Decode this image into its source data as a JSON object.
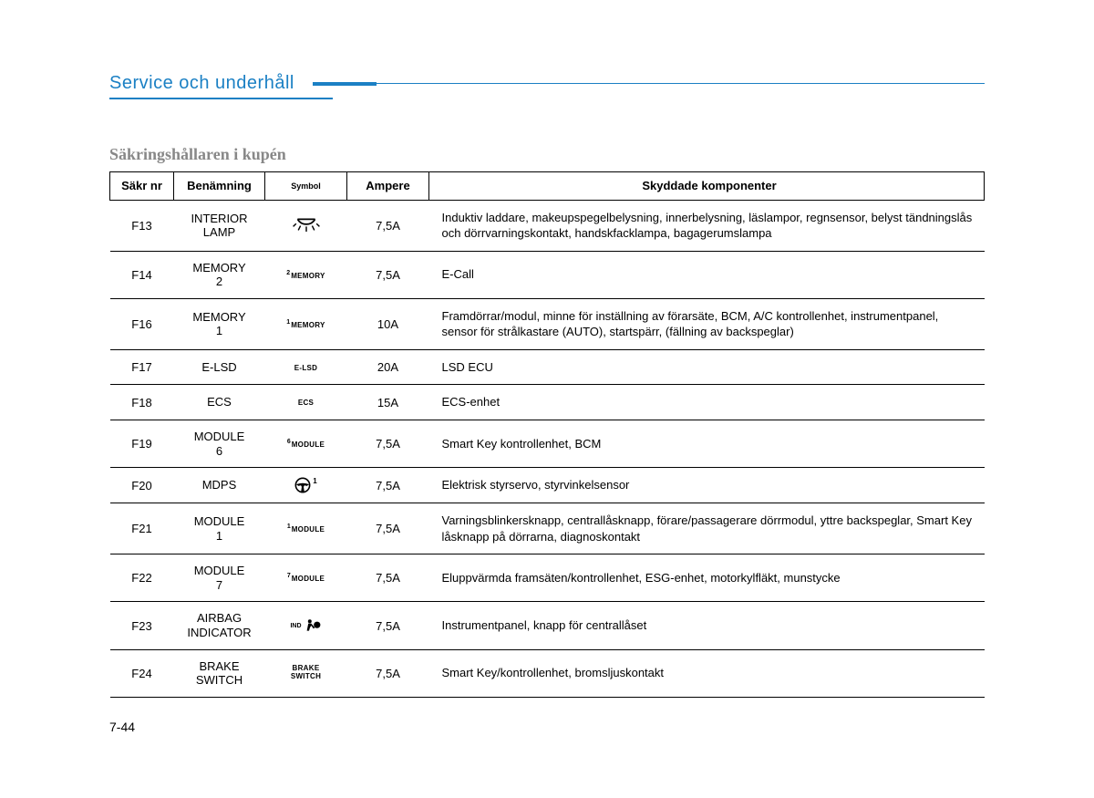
{
  "header": {
    "title": "Service och underhåll",
    "title_color": "#1b80c4"
  },
  "subtitle": "Säkringshållaren i kupén",
  "table": {
    "columns": [
      "Säkr nr",
      "Benämning",
      "Symbol",
      "Ampere",
      "Skyddade komponenter"
    ],
    "rows": [
      {
        "fuse": "F13",
        "name": "INTERIOR LAMP",
        "symbol_type": "lamp",
        "amp": "7,5A",
        "desc": "Induktiv laddare, makeupspegelbelysning, innerbelysning, läslampor, regnsensor, belyst tändningslås och dörrvarningskontakt, handskfacklampa, bagagerumslampa"
      },
      {
        "fuse": "F14",
        "name": "MEMORY 2",
        "symbol_type": "sup_text",
        "sup": "2",
        "text": "MEMORY",
        "amp": "7,5A",
        "desc": "E-Call"
      },
      {
        "fuse": "F16",
        "name": "MEMORY 1",
        "symbol_type": "sup_text",
        "sup": "1",
        "text": "MEMORY",
        "amp": "10A",
        "desc": "Framdörrar/modul, minne för inställning av förarsäte, BCM, A/C kontrollenhet, instrumentpanel, sensor för strålkastare (AUTO), startspärr, (fällning av backspeglar)"
      },
      {
        "fuse": "F17",
        "name": "E-LSD",
        "symbol_type": "text",
        "text": "E-LSD",
        "amp": "20A",
        "desc": "LSD ECU"
      },
      {
        "fuse": "F18",
        "name": "ECS",
        "symbol_type": "text",
        "text": "ECS",
        "amp": "15A",
        "desc": "ECS-enhet"
      },
      {
        "fuse": "F19",
        "name": "MODULE 6",
        "symbol_type": "sup_text",
        "sup": "6",
        "text": "MODULE",
        "amp": "7,5A",
        "desc": "Smart Key kontrollenhet, BCM"
      },
      {
        "fuse": "F20",
        "name": "MDPS",
        "symbol_type": "wheel",
        "sup": "1",
        "amp": "7,5A",
        "desc": "Elektrisk styrservo, styrvinkelsensor"
      },
      {
        "fuse": "F21",
        "name": "MODULE 1",
        "symbol_type": "sup_text",
        "sup": "1",
        "text": "MODULE",
        "amp": "7,5A",
        "desc": "Varningsblinkersknapp, centrallåsknapp, förare/passagerare dörrmodul, yttre backspeglar, Smart Key låsknapp på dörrarna, diagnoskontakt"
      },
      {
        "fuse": "F22",
        "name": "MODULE 7",
        "symbol_type": "sup_text",
        "sup": "7",
        "text": "MODULE",
        "amp": "7,5A",
        "desc": "Eluppvärmda framsäten/kontrollenhet, ESG-enhet, motorkylfläkt, munstycke"
      },
      {
        "fuse": "F23",
        "name": "AIRBAG INDICATOR",
        "symbol_type": "airbag",
        "sup": "IND",
        "amp": "7,5A",
        "desc": "Instrumentpanel, knapp för centrallåset"
      },
      {
        "fuse": "F24",
        "name": "BRAKE SWITCH",
        "symbol_type": "twoline",
        "line1": "BRAKE",
        "line2": "SWITCH",
        "amp": "7,5A",
        "desc": "Smart Key/kontrollenhet, bromsljuskontakt"
      }
    ]
  },
  "page_number": "7-44"
}
